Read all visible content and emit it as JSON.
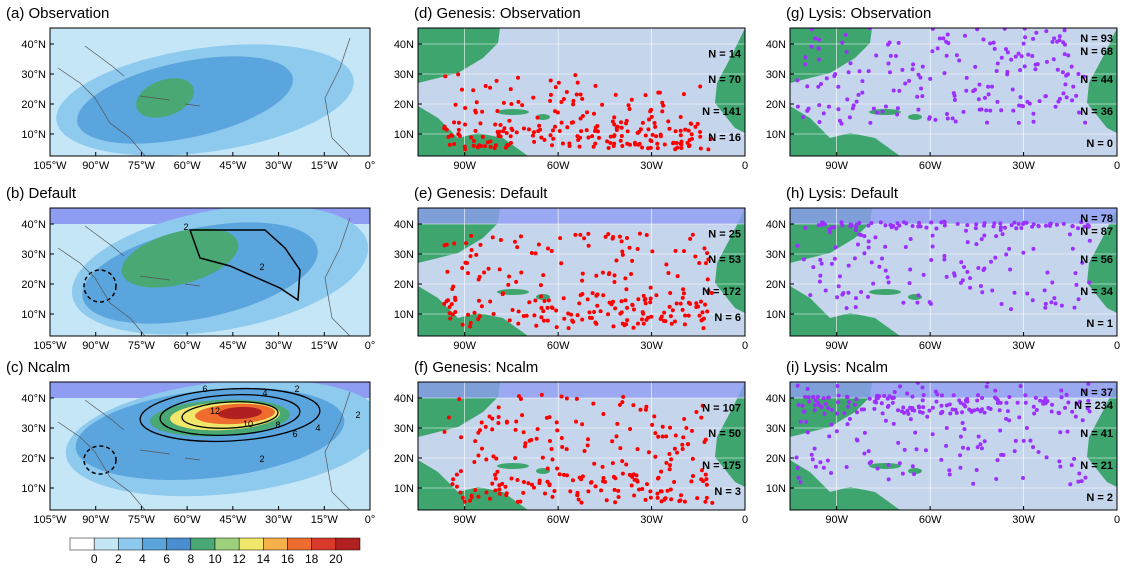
{
  "colors": {
    "levels": [
      "#ffffff",
      "#c4e6f7",
      "#8ec9ee",
      "#5aa5dd",
      "#4a8ecf",
      "#49a873",
      "#9dd07a",
      "#f1e76a",
      "#f8b04a",
      "#ee6c2d",
      "#d93a2b",
      "#b02020",
      "#7a0f12"
    ],
    "ocean": "#c5d6ec",
    "land": "#3ea56f",
    "mask_band": "#8e9df2",
    "genesis_points": "#ff0000",
    "lysis_points": "#9b30ff"
  },
  "colorbar": {
    "ticks": [
      "0",
      "2",
      "4",
      "6",
      "8",
      "10",
      "12",
      "14",
      "16",
      "18",
      "20"
    ]
  },
  "density_lon_ticks": [
    "105°W",
    "90°W",
    "75°W",
    "60°W",
    "45°W",
    "30°W",
    "15°W",
    "0°"
  ],
  "density_lat_ticks": [
    "40°N",
    "30°N",
    "20°N",
    "10°N"
  ],
  "point_lon_ticks": [
    "90W",
    "60W",
    "30W",
    "0"
  ],
  "point_lat_ticks": [
    "40N",
    "30N",
    "20N",
    "10N"
  ],
  "chart_data": [
    {
      "type": "heatmap",
      "title": "(a) Observation",
      "contour_labels": []
    },
    {
      "type": "heatmap",
      "title": "(b) Default",
      "contour_labels": [
        "2",
        "2"
      ]
    },
    {
      "type": "heatmap",
      "title": "(c) Ncalm",
      "contour_labels": [
        "6",
        "4",
        "2",
        "12",
        "10",
        "8",
        "6",
        "4",
        "2",
        "2"
      ]
    },
    {
      "type": "scatter",
      "title": "(d) Genesis: Observation",
      "n_labels": [
        "N = 14",
        "N = 70",
        "N = 141",
        "N = 16"
      ]
    },
    {
      "type": "scatter",
      "title": "(e) Genesis: Default",
      "n_labels": [
        "N = 25",
        "N = 53",
        "N = 172",
        "N = 6"
      ]
    },
    {
      "type": "scatter",
      "title": "(f) Genesis: Ncalm",
      "n_labels": [
        "N = 107",
        "N = 50",
        "N = 175",
        "N = 3"
      ]
    },
    {
      "type": "scatter",
      "title": "(g) Lysis: Observation",
      "n_labels": [
        "N = 93",
        "N = 68",
        "N = 44",
        "N = 36",
        "N = 0"
      ]
    },
    {
      "type": "scatter",
      "title": "(h) Lysis: Default",
      "n_labels": [
        "N = 78",
        "N = 87",
        "N = 56",
        "N = 34",
        "N = 1"
      ]
    },
    {
      "type": "scatter",
      "title": "(i) Lysis: Ncalm",
      "n_labels": [
        "N = 37",
        "N = 234",
        "N = 41",
        "N = 21",
        "N = 2"
      ]
    }
  ]
}
